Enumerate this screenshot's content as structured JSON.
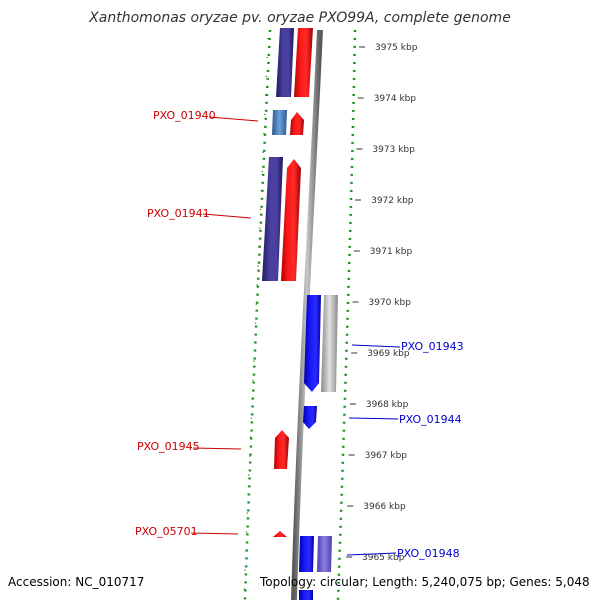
{
  "title": "Xanthomonas oryzae pv. oryzae PXO99A, complete genome",
  "footer": {
    "accession": "Accession: NC_010717",
    "summary": "Topology: circular; Length: 5,240,075 bp; Genes: 5,048"
  },
  "colors": {
    "forward_gene": "#ff0000",
    "reverse_gene": "#0000ff",
    "forward_cds": "#3a3189",
    "reverse_cds": "#bfbfbf",
    "rna": "#4a86c0",
    "gc_skew": "#008000",
    "backbone": "#7f7f7f",
    "forward_label": "#cc0000",
    "reverse_label": "#0000cc"
  },
  "ruler": {
    "ticks": [
      {
        "label": "3975 kbp"
      },
      {
        "label": "3974 kbp"
      },
      {
        "label": "3973 kbp"
      },
      {
        "label": "3972 kbp"
      },
      {
        "label": "3971 kbp"
      },
      {
        "label": "3970 kbp"
      },
      {
        "label": "3969 kbp"
      },
      {
        "label": "3968 kbp"
      },
      {
        "label": "3967 kbp"
      },
      {
        "label": "3966 kbp"
      },
      {
        "label": "3965 kbp"
      }
    ]
  },
  "gene_labels": [
    {
      "name": "PXO_01940",
      "strand": "forward"
    },
    {
      "name": "PXO_01941",
      "strand": "forward"
    },
    {
      "name": "PXO_01943",
      "strand": "reverse"
    },
    {
      "name": "PXO_01944",
      "strand": "reverse"
    },
    {
      "name": "PXO_01945",
      "strand": "forward"
    },
    {
      "name": "PXO_05701",
      "strand": "forward"
    },
    {
      "name": "PXO_01948",
      "strand": "reverse"
    }
  ]
}
